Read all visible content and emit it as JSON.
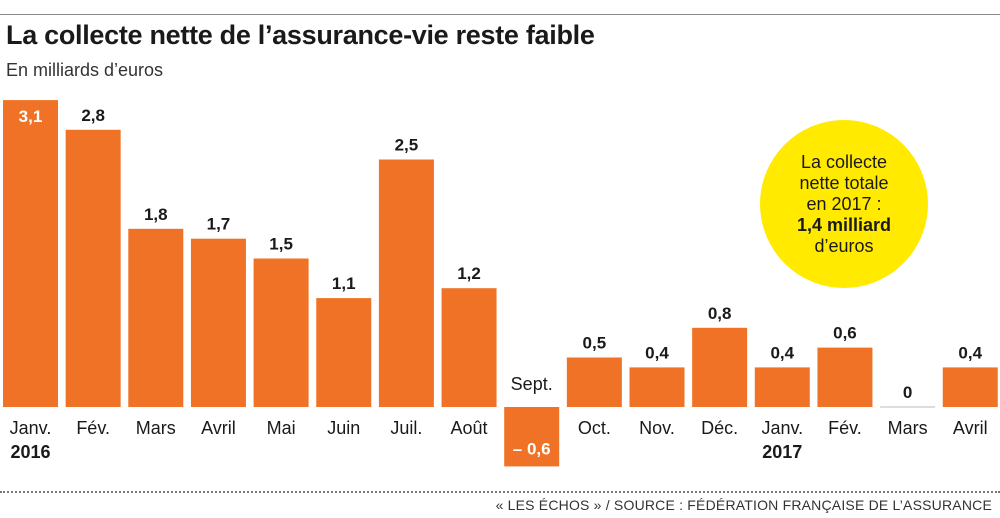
{
  "title": "La collecte nette de l’assurance-vie reste faible",
  "subtitle": "En milliards d’euros",
  "source": "« LES ÉCHOS » / SOURCE : FÉDÉRATION FRANÇAISE DE L’ASSURANCE",
  "callout": {
    "line1": "La collecte",
    "line2": "nette totale",
    "line3": "en 2017 :",
    "highlight": "1,4 milliard",
    "line5": "d’euros"
  },
  "colors": {
    "bar": "#f07226",
    "callout": "#ffea00",
    "text": "#1a1a1a"
  },
  "chart_data": {
    "type": "bar",
    "categories": [
      "Janv.",
      "Fév.",
      "Mars",
      "Avril",
      "Mai",
      "Juin",
      "Juil.",
      "Août",
      "Sept.",
      "Oct.",
      "Nov.",
      "Déc.",
      "Janv.",
      "Fév.",
      "Mars",
      "Avril"
    ],
    "year_labels": [
      "2016",
      "",
      "",
      "",
      "",
      "",
      "",
      "",
      "",
      "",
      "",
      "",
      "2017",
      "",
      "",
      ""
    ],
    "values": [
      3.1,
      2.8,
      1.8,
      1.7,
      1.5,
      1.1,
      2.5,
      1.2,
      -0.6,
      0.5,
      0.4,
      0.8,
      0.4,
      0.6,
      0,
      0.4
    ],
    "value_labels": [
      "3,1",
      "2,8",
      "1,8",
      "1,7",
      "1,5",
      "1,1",
      "2,5",
      "1,2",
      "– 0,6",
      "0,5",
      "0,4",
      "0,8",
      "0,4",
      "0,6",
      "0",
      "0,4"
    ],
    "ylim": [
      -0.6,
      3.1
    ],
    "unit": "En milliards d’euros",
    "grid": false,
    "legend": "none"
  }
}
